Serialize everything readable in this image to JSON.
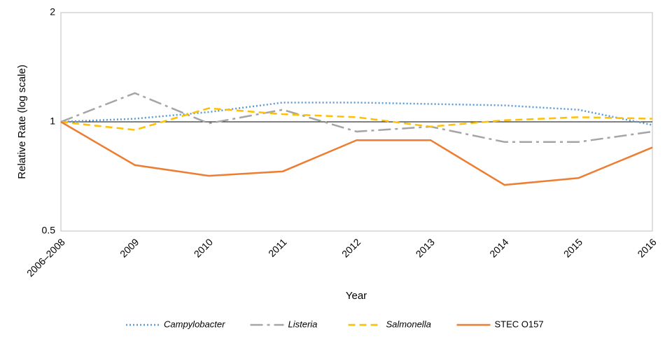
{
  "chart_data": {
    "type": "line",
    "x_label": "Year",
    "y_label": "Relative Rate (log scale)",
    "categories": [
      "2006–2008",
      "2009",
      "2010",
      "2011",
      "2012",
      "2013",
      "2014",
      "2015",
      "2016"
    ],
    "series": [
      {
        "name": "Campylobacter",
        "color": "#5b9bd5",
        "dash": "2 3",
        "font_style": "italic",
        "values": [
          1,
          1.02,
          1.064,
          1.13,
          1.13,
          1.12,
          1.11,
          1.08,
          0.98
        ]
      },
      {
        "name": "Listeria",
        "color": "#a5a5a5",
        "dash": "18 6 4 6",
        "font_style": "italic",
        "values": [
          1,
          1.2,
          0.99,
          1.08,
          0.94,
          0.97,
          0.88,
          0.88,
          0.94
        ]
      },
      {
        "name": "Salmonella",
        "color": "#ffc000",
        "dash": "10 6",
        "font_style": "italic",
        "values": [
          1,
          0.95,
          1.09,
          1.05,
          1.03,
          0.97,
          1.01,
          1.03,
          1.02
        ]
      },
      {
        "name": "STEC O157",
        "color": "#ed7d31",
        "dash": "none",
        "font_style": "normal",
        "values": [
          1,
          0.76,
          0.71,
          0.73,
          0.89,
          0.89,
          0.67,
          0.7,
          0.85
        ]
      }
    ],
    "log_scale": true,
    "ylim": [
      0.5,
      2
    ],
    "yticks": [
      0.5,
      1,
      2
    ],
    "reference_line": 1
  }
}
